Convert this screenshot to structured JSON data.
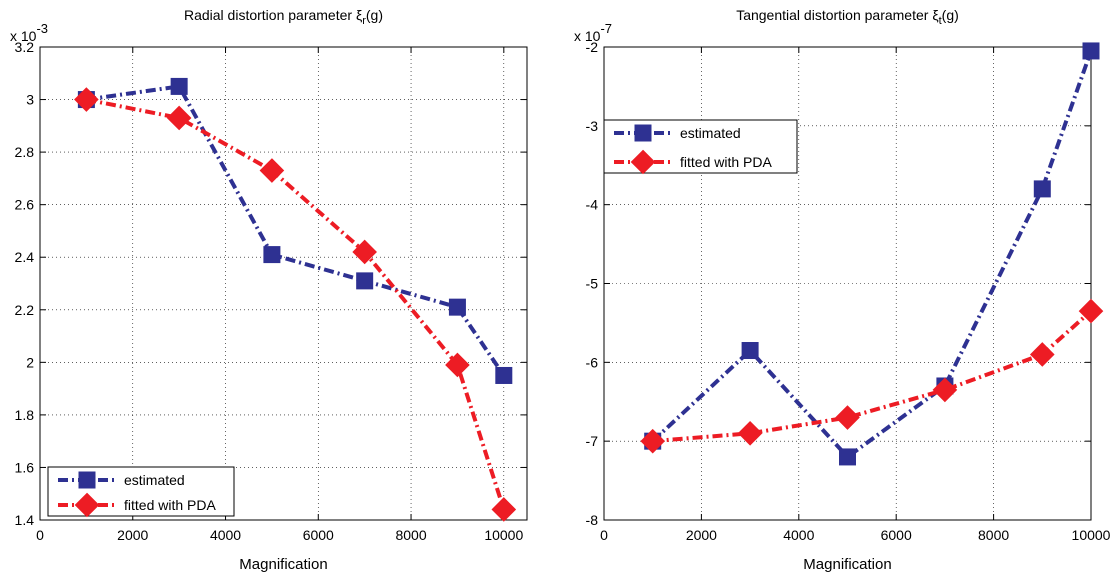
{
  "chart_data": [
    {
      "type": "line",
      "title": "Radial distortion parameter ξ",
      "title_sub": "r",
      "title_suffix": "(g)",
      "xlabel": "Magnification",
      "ylabel": "",
      "y_exponent_base": "x 10",
      "y_exponent_power": "-3",
      "xlim": [
        0,
        10500
      ],
      "ylim": [
        1.4,
        3.2
      ],
      "x_ticks": [
        "0",
        "2000",
        "4000",
        "6000",
        "8000",
        "10000"
      ],
      "y_ticks": [
        "1.4",
        "1.6",
        "1.8",
        "2",
        "2.2",
        "2.4",
        "2.6",
        "2.8",
        "3",
        "3.2"
      ],
      "grid": true,
      "legend_position": "bottom-left",
      "x": [
        1000,
        3000,
        5000,
        7000,
        9000,
        10000
      ],
      "series": [
        {
          "name": "estimated",
          "values": [
            3.0,
            3.05,
            2.41,
            2.31,
            2.21,
            1.95
          ],
          "color": "#2e3192",
          "marker": "square",
          "line": "dash-dot"
        },
        {
          "name": "fitted with PDA",
          "values": [
            3.0,
            2.93,
            2.73,
            2.42,
            1.99,
            1.44
          ],
          "color": "#ed1c24",
          "marker": "diamond",
          "line": "dash-dot"
        }
      ]
    },
    {
      "type": "line",
      "title": "Tangential distortion parameter ξ",
      "title_sub": "t",
      "title_suffix": "(g)",
      "xlabel": "Magnification",
      "ylabel": "",
      "y_exponent_base": "x 10",
      "y_exponent_power": "-7",
      "xlim": [
        0,
        10000
      ],
      "ylim": [
        -8,
        -2
      ],
      "x_ticks": [
        "0",
        "2000",
        "4000",
        "6000",
        "8000",
        "10000"
      ],
      "y_ticks": [
        "-8",
        "-7",
        "-6",
        "-5",
        "-4",
        "-3",
        "-2"
      ],
      "grid": true,
      "legend_position": "top-left",
      "x": [
        1000,
        3000,
        5000,
        7000,
        9000,
        10000
      ],
      "series": [
        {
          "name": "estimated",
          "values": [
            -7.0,
            -5.85,
            -7.2,
            -6.3,
            -3.8,
            -2.05
          ],
          "color": "#2e3192",
          "marker": "square",
          "line": "dash-dot"
        },
        {
          "name": "fitted with PDA",
          "values": [
            -7.0,
            -6.9,
            -6.7,
            -6.35,
            -5.9,
            -5.35
          ],
          "color": "#ed1c24",
          "marker": "diamond",
          "line": "dash-dot"
        }
      ]
    }
  ]
}
